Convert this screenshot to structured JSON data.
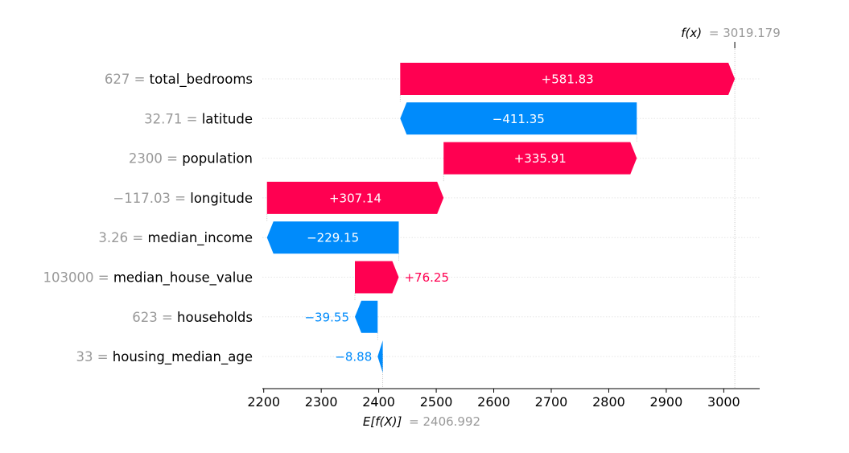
{
  "chart_data": {
    "type": "waterfall",
    "base_value": 2406.992,
    "final_value": 3019.179,
    "fx_label": {
      "name": "f(x)",
      "value": "= 3019.179"
    },
    "ex_label": {
      "name": "E[f(X)]",
      "value": "= 2406.992"
    },
    "xlim": [
      2200,
      3065
    ],
    "xticks": [
      2200,
      2300,
      2400,
      2500,
      2600,
      2700,
      2800,
      2900,
      3000
    ],
    "features": [
      {
        "value": "627",
        "name": "total_bedrooms",
        "contribution": 581.83,
        "label": "+581.83"
      },
      {
        "value": "32.71",
        "name": "latitude",
        "contribution": -411.35,
        "label": "−411.35"
      },
      {
        "value": "2300",
        "name": "population",
        "contribution": 335.91,
        "label": "+335.91"
      },
      {
        "value": "−117.03",
        "name": "longitude",
        "contribution": 307.14,
        "label": "+307.14"
      },
      {
        "value": "3.26",
        "name": "median_income",
        "contribution": -229.15,
        "label": "−229.15"
      },
      {
        "value": "103000",
        "name": "median_house_value",
        "contribution": 76.25,
        "label": "+76.25"
      },
      {
        "value": "623",
        "name": "households",
        "contribution": -39.55,
        "label": "−39.55"
      },
      {
        "value": "33",
        "name": "housing_median_age",
        "contribution": -8.88,
        "label": "−8.88"
      }
    ],
    "colors": {
      "positive": "#ff0051",
      "negative": "#008bfb"
    },
    "grid": true
  }
}
